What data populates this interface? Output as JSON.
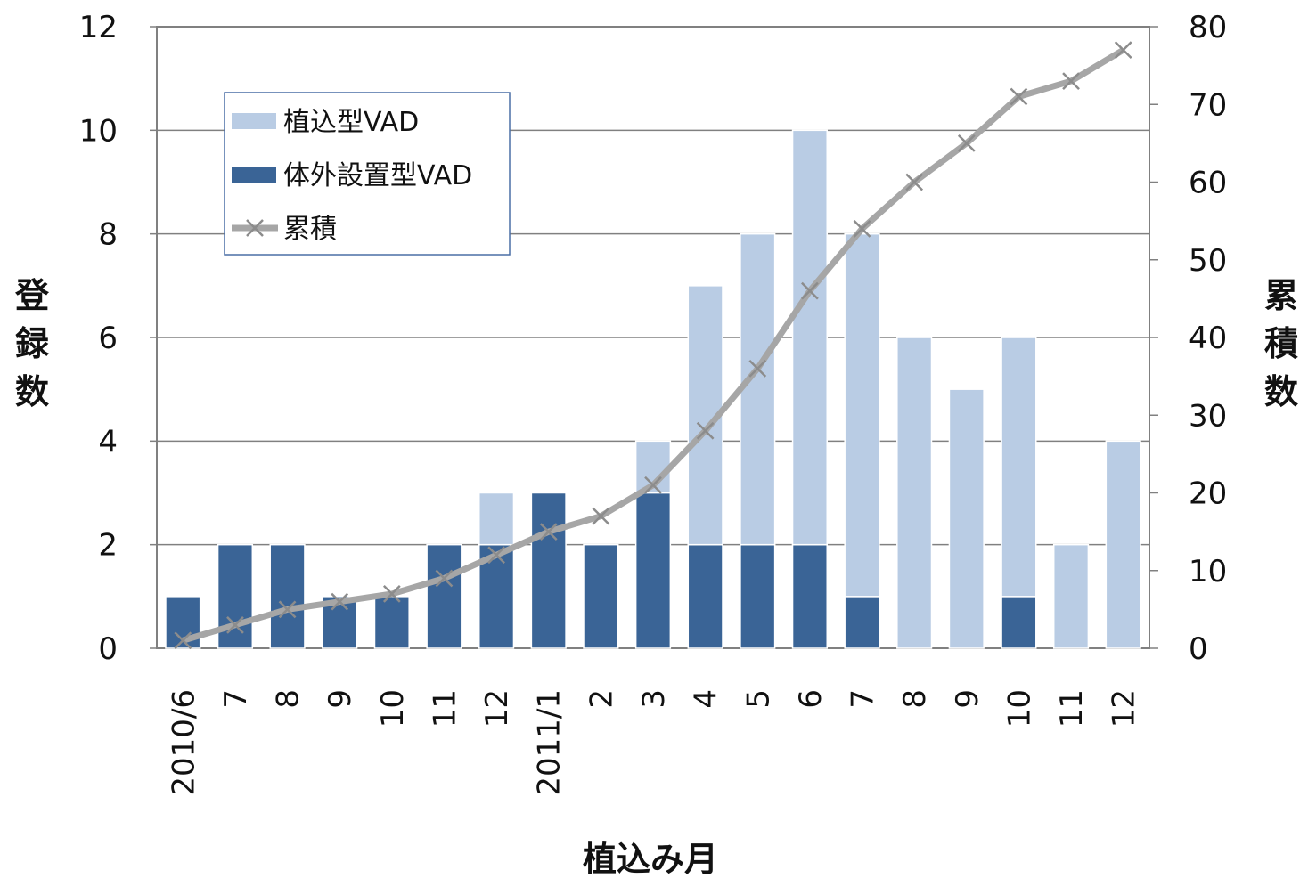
{
  "chart_data": {
    "type": "bar",
    "stacked": true,
    "categories": [
      "2010/6",
      "7",
      "8",
      "9",
      "10",
      "11",
      "12",
      "2011/1",
      "2",
      "3",
      "4",
      "5",
      "6",
      "7",
      "8",
      "9",
      "10",
      "11",
      "12"
    ],
    "series": [
      {
        "name": "体外設置型VAD",
        "type": "bar",
        "axis": "left",
        "color": "#3a6496",
        "values": [
          1,
          2,
          2,
          1,
          1,
          2,
          2,
          3,
          2,
          3,
          2,
          2,
          2,
          1,
          0,
          0,
          1,
          0,
          0
        ]
      },
      {
        "name": "植込型VAD",
        "type": "bar",
        "axis": "left",
        "color": "#b9cce4",
        "values": [
          0,
          0,
          0,
          0,
          0,
          0,
          1,
          0,
          0,
          1,
          5,
          6,
          8,
          7,
          6,
          5,
          5,
          2,
          4
        ]
      },
      {
        "name": "累積",
        "type": "line",
        "axis": "right",
        "color": "#a6a6a6",
        "values": [
          1,
          3,
          5,
          6,
          7,
          9,
          12,
          15,
          17,
          21,
          28,
          36,
          46,
          54,
          60,
          65,
          71,
          73,
          77
        ]
      }
    ],
    "legend_order": [
      "植込型VAD",
      "体外設置型VAD",
      "累積"
    ],
    "legend_position": "top-left",
    "xlabel": "植込み月",
    "ylabel": "登録数",
    "y2label": "累積数",
    "ylim": [
      0,
      12
    ],
    "yticks": [
      0,
      2,
      4,
      6,
      8,
      10,
      12
    ],
    "y2lim": [
      0,
      80
    ],
    "y2ticks": [
      0,
      10,
      20,
      30,
      40,
      50,
      60,
      70,
      80
    ],
    "grid": true
  }
}
